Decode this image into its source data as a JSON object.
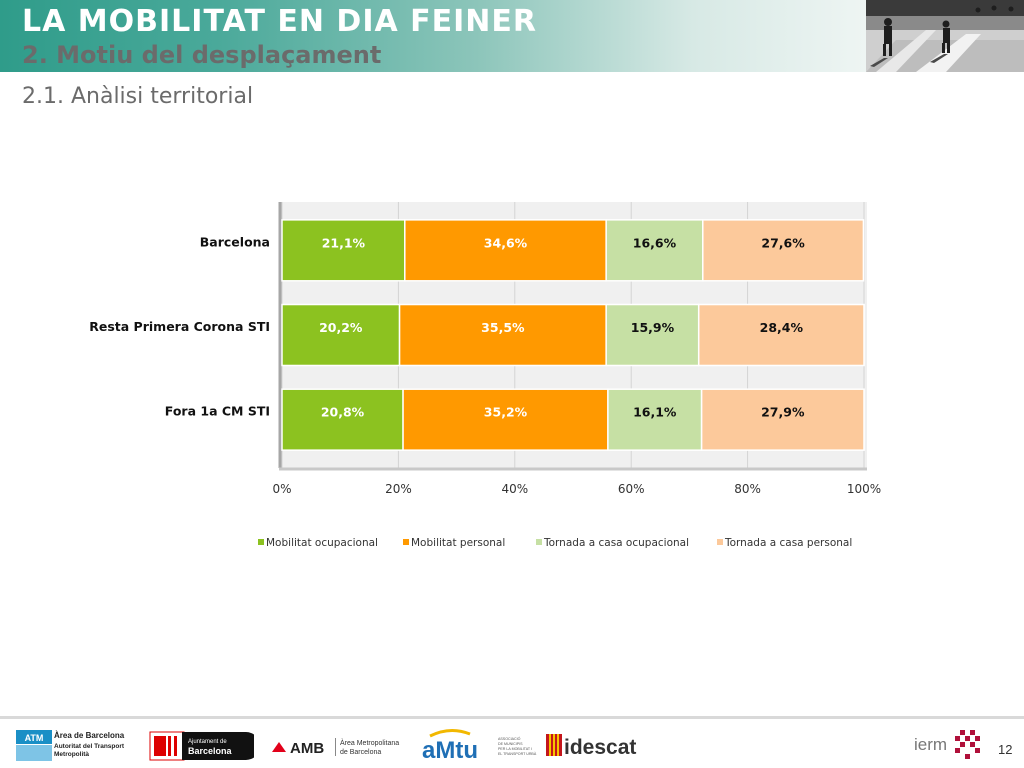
{
  "header": {
    "title": "LA MOBILITAT EN DIA FEINER",
    "subtitle": "2. Motiu del desplaçament"
  },
  "section": {
    "title": "2.1. Anàlisi territorial"
  },
  "colors": {
    "ocupacional": "#8cc220",
    "personal": "#ff9900",
    "tornada_ocupacional": "#c6e0a4",
    "tornada_personal": "#fcc99b",
    "header_teal": "#2f9c8a"
  },
  "chart_data": {
    "type": "bar",
    "orientation": "horizontal",
    "stacked": "percent",
    "categories": [
      "Barcelona",
      "Resta Primera Corona STI",
      "Fora 1a CM STI"
    ],
    "series": [
      {
        "name": "Mobilitat ocupacional",
        "values": [
          21.1,
          20.2,
          20.8
        ],
        "labels": [
          "21,1%",
          "20,2%",
          "20,8%"
        ],
        "color": "#8cc220"
      },
      {
        "name": "Mobilitat personal",
        "values": [
          34.6,
          35.5,
          35.2
        ],
        "labels": [
          "34,6%",
          "35,5%",
          "35,2%"
        ],
        "color": "#ff9900"
      },
      {
        "name": "Tornada a casa ocupacional",
        "values": [
          16.6,
          15.9,
          16.1
        ],
        "labels": [
          "16,6%",
          "15,9%",
          "16,1%"
        ],
        "color": "#c6e0a4"
      },
      {
        "name": "Tornada a casa personal",
        "values": [
          27.6,
          28.4,
          27.9
        ],
        "labels": [
          "27,6%",
          "28,4%",
          "27,9%"
        ],
        "color": "#fcc99b"
      }
    ],
    "x_ticks": [
      "0%",
      "20%",
      "40%",
      "60%",
      "80%",
      "100%"
    ],
    "xlim": [
      0,
      100
    ],
    "grid": true,
    "legend_position": "bottom"
  },
  "footer": {
    "page_number": "12",
    "logos": {
      "atm": {
        "badge": "ATM",
        "line1": "Àrea de Barcelona",
        "line2": "Autoritat del Transport",
        "line3": "Metropolità"
      },
      "ajuntament": {
        "line1": "Ajuntament de",
        "line2": "Barcelona"
      },
      "amb": {
        "mark": "AMB",
        "line1": "Àrea Metropolitana",
        "line2": "de Barcelona"
      },
      "amtu": {
        "mark": "aMtu",
        "line1": "ASSOCIACIÓ",
        "line2": "DE MUNICIPIS",
        "line3": "PER LA MOBILITAT I",
        "line4": "EL TRANSPORT URBÀ"
      },
      "idescat": {
        "mark": "idescat"
      },
      "iermb": {
        "mark": "ierm"
      }
    }
  }
}
